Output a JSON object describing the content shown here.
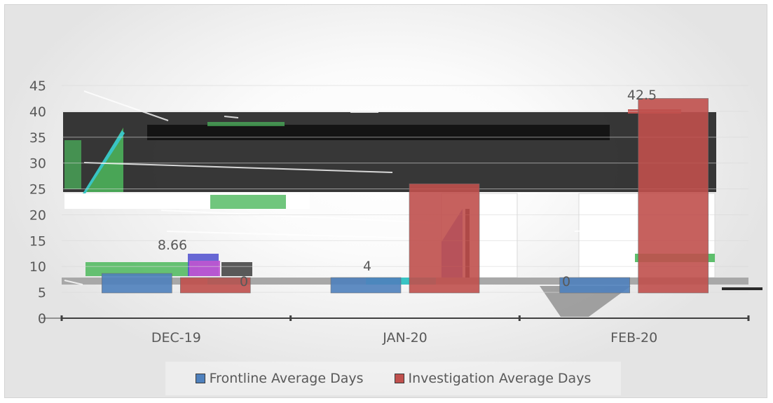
{
  "chart_data": {
    "type": "bar",
    "categories": [
      "DEC-19",
      "JAN-20",
      "FEB-20"
    ],
    "series": [
      {
        "name": "Frontline Average Days",
        "values": [
          8.66,
          4,
          0
        ]
      },
      {
        "name": "Investigation Average Days",
        "values": [
          0,
          26,
          42.5
        ]
      }
    ],
    "data_labels": [
      {
        "category": "DEC-19",
        "text": "8.66"
      },
      {
        "category": "DEC-19",
        "text": "0"
      },
      {
        "category": "JAN-20",
        "text": "4"
      },
      {
        "category": "FEB-20",
        "text": "0"
      },
      {
        "category": "FEB-20",
        "text": "42.5"
      }
    ],
    "y_ticks": [
      "0",
      "5",
      "10",
      "15",
      "20",
      "25",
      "30",
      "35",
      "40",
      "45"
    ],
    "ylim": [
      0,
      45
    ],
    "grid": true,
    "legend_position": "bottom",
    "colors": {
      "frontline": "#4f81bd",
      "investigation": "#c0504d",
      "text": "#595959",
      "axis": "#404040",
      "glitch_dark": "#262626",
      "glitch_green": "#4cb85c",
      "glitch_cyan": "#39c4c4",
      "glitch_magenta": "#c055d0",
      "glitch_blue": "#5858d0"
    }
  }
}
